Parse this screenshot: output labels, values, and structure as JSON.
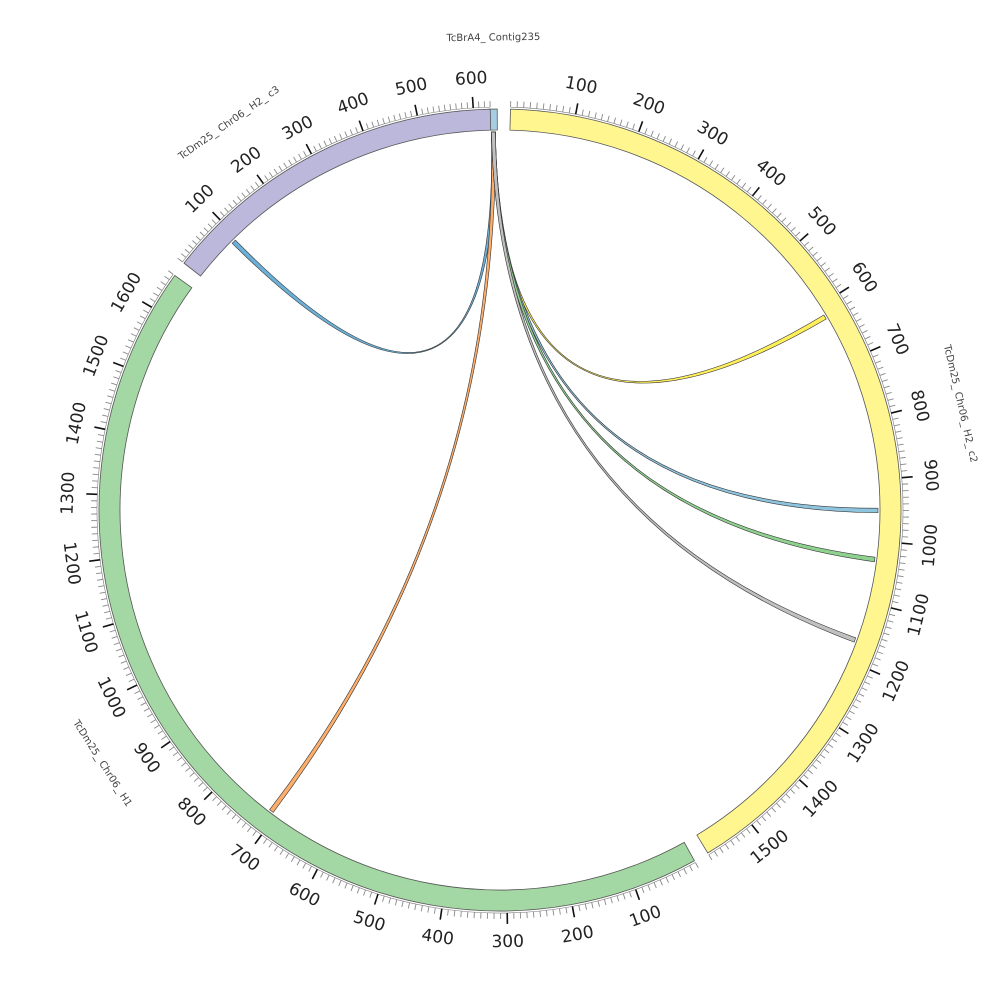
{
  "diagram": {
    "type": "circos",
    "segments": [
      {
        "id": "contig235",
        "name": "TcBrA4_ Contig235",
        "length": 10,
        "color": "#a6cee3",
        "tick_labels": []
      },
      {
        "id": "c2",
        "name": "TcDm25_ Chr06_ H2_ c2",
        "length": 1580,
        "color": "#fff68f",
        "tick_labels": [
          "100",
          "200",
          "300",
          "400",
          "500",
          "600",
          "700",
          "800",
          "900",
          "1000",
          "1100",
          "1200",
          "1300",
          "1400",
          "1500"
        ]
      },
      {
        "id": "h1",
        "name": "TcDm25_ Chr06_ H1",
        "length": 1660,
        "color": "#a3d7a3",
        "tick_labels": [
          "100",
          "200",
          "300",
          "400",
          "500",
          "600",
          "700",
          "800",
          "900",
          "1000",
          "1100",
          "1200",
          "1300",
          "1400",
          "1500",
          "1600"
        ]
      },
      {
        "id": "c3",
        "name": "TcDm25_ Chr06_ H2_ c3",
        "length": 630,
        "color": "#bcb8dc",
        "tick_labels": [
          "100",
          "200",
          "300",
          "400",
          "500",
          "600"
        ]
      }
    ],
    "links": [
      {
        "from": "contig235",
        "to_segment": "c3",
        "to_position": 90,
        "color": "#6baed6"
      },
      {
        "from": "contig235",
        "to_segment": "h1",
        "to_position": 710,
        "color": "#fdae6b"
      },
      {
        "from": "contig235",
        "to_segment": "c2",
        "to_position": 620,
        "color": "#ffef5a"
      },
      {
        "from": "contig235",
        "to_segment": "c2",
        "to_position": 950,
        "color": "#8ec4de"
      },
      {
        "from": "contig235",
        "to_segment": "c2",
        "to_position": 1030,
        "color": "#8fd18f"
      },
      {
        "from": "contig235",
        "to_segment": "c2",
        "to_position": 1165,
        "color": "#c0c0c0"
      }
    ]
  }
}
